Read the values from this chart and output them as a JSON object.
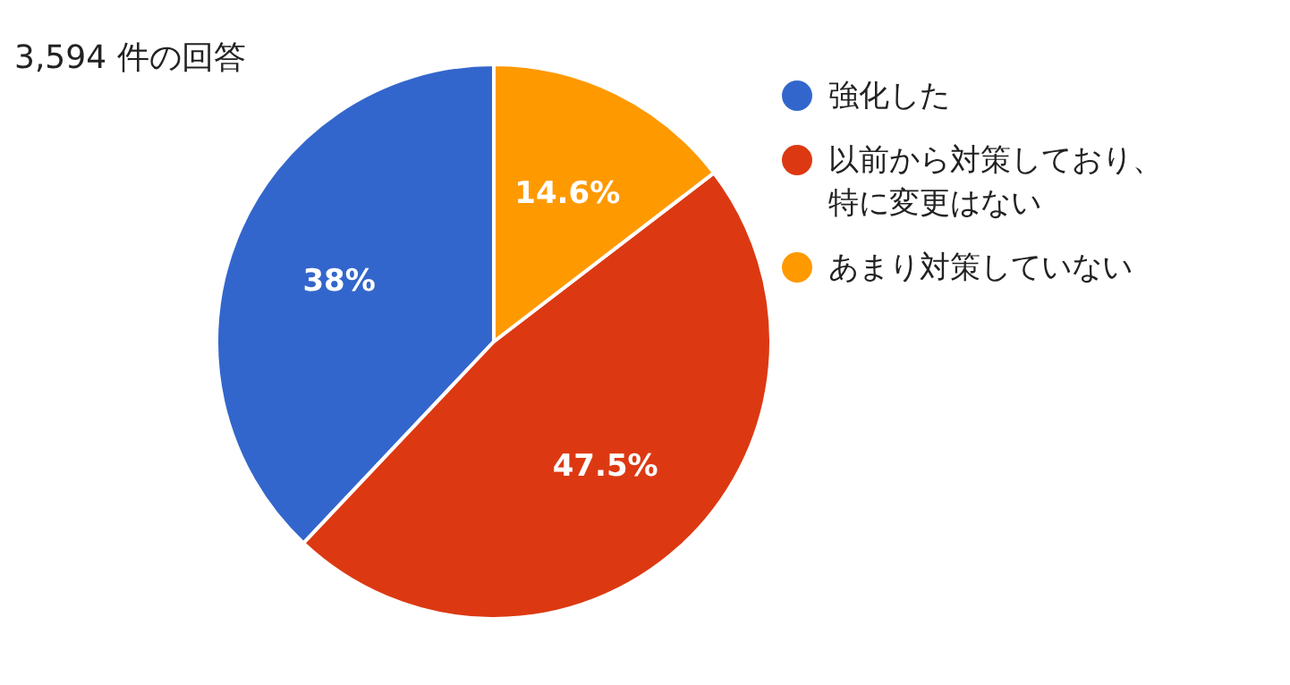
{
  "chart_data": {
    "type": "pie",
    "title": "3,594 件の回答",
    "categories": [
      "強化した",
      "以前から対策しており、特に変更はない",
      "あまり対策していない"
    ],
    "values": [
      38,
      47.5,
      14.6
    ],
    "value_labels": [
      "38%",
      "47.5%",
      "14.6%"
    ],
    "colors": [
      "#3366cc",
      "#dc3912",
      "#ff9900"
    ],
    "legend": "right"
  }
}
